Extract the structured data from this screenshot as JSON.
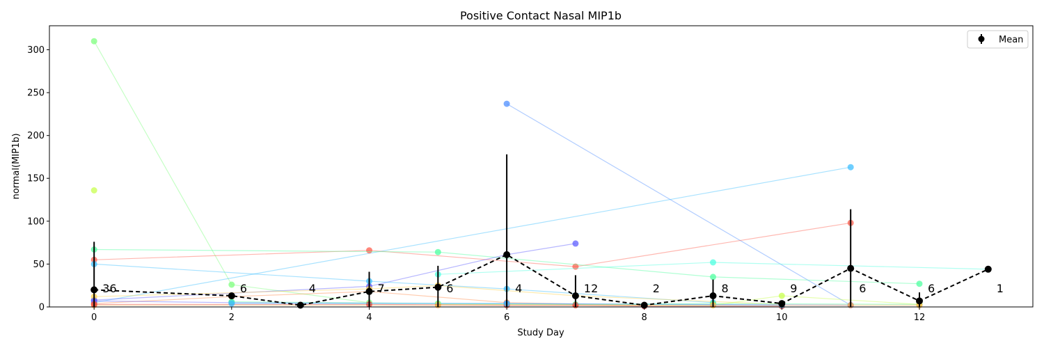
{
  "chart_data": {
    "type": "line",
    "title": "Positive Contact Nasal MIP1b",
    "xlabel": "Study Day",
    "ylabel": "normal(MIP1b)",
    "xlim": [
      -0.65,
      13.65
    ],
    "ylim": [
      0,
      328
    ],
    "xticks": [
      0,
      2,
      4,
      6,
      8,
      10,
      12
    ],
    "yticks": [
      0,
      50,
      100,
      150,
      200,
      250,
      300
    ],
    "grid": false,
    "legend": {
      "position": "top-right",
      "entries": [
        "Mean"
      ]
    },
    "mean_series": {
      "name": "Mean",
      "color": "#000000",
      "points": [
        {
          "x": 0,
          "y": 20,
          "err": 56,
          "n": "36"
        },
        {
          "x": 2,
          "y": 13,
          "err": 0,
          "n": "6"
        },
        {
          "x": 3,
          "y": 2,
          "err": 0,
          "n": "4"
        },
        {
          "x": 4,
          "y": 18,
          "err": 23,
          "n": "7"
        },
        {
          "x": 5,
          "y": 23,
          "err": 25,
          "n": "6"
        },
        {
          "x": 6,
          "y": 61,
          "err": 117,
          "n": "4"
        },
        {
          "x": 7,
          "y": 13,
          "err": 24,
          "n": "12"
        },
        {
          "x": 8,
          "y": 2,
          "err": 0,
          "n": "2"
        },
        {
          "x": 9,
          "y": 13,
          "err": 19,
          "n": "8"
        },
        {
          "x": 10,
          "y": 4,
          "err": 0,
          "n": "9"
        },
        {
          "x": 11,
          "y": 45,
          "err": 69,
          "n": "6"
        },
        {
          "x": 12,
          "y": 7,
          "err": 10,
          "n": "6"
        },
        {
          "x": 13,
          "y": 44,
          "err": 0,
          "n": "1"
        }
      ]
    },
    "subject_series": [
      {
        "color": "#7fff7f",
        "points": [
          [
            0,
            310
          ],
          [
            2,
            26
          ],
          [
            4,
            5
          ]
        ]
      },
      {
        "color": "#4f8fff",
        "points": [
          [
            6,
            237
          ],
          [
            11,
            2
          ]
        ]
      },
      {
        "color": "#3fbfff",
        "points": [
          [
            0,
            5
          ],
          [
            11,
            163
          ]
        ]
      },
      {
        "color": "#ff5f4f",
        "points": [
          [
            0,
            55
          ],
          [
            4,
            66
          ],
          [
            7,
            47
          ],
          [
            11,
            98
          ]
        ]
      },
      {
        "color": "#c8ff4f",
        "points": [
          [
            0,
            136
          ]
        ]
      },
      {
        "color": "#4fffa0",
        "points": [
          [
            0,
            67
          ],
          [
            5,
            64
          ],
          [
            9,
            35
          ],
          [
            12,
            27
          ]
        ]
      },
      {
        "color": "#4fffe0",
        "points": [
          [
            5,
            38
          ],
          [
            9,
            52
          ],
          [
            13,
            44
          ]
        ]
      },
      {
        "color": "#5f5fff",
        "points": [
          [
            0,
            8
          ],
          [
            4,
            24
          ],
          [
            6,
            61
          ],
          [
            7,
            74
          ]
        ]
      },
      {
        "color": "#3fbfff",
        "points": [
          [
            0,
            50
          ],
          [
            4,
            30
          ],
          [
            6,
            21
          ],
          [
            9,
            5
          ]
        ]
      },
      {
        "color": "#ffd24f",
        "points": [
          [
            0,
            12
          ],
          [
            4,
            21
          ],
          [
            5,
            25
          ],
          [
            7,
            13
          ],
          [
            10,
            3
          ]
        ]
      },
      {
        "color": "#ff8f4f",
        "points": [
          [
            0,
            4
          ],
          [
            2,
            12
          ],
          [
            4,
            18
          ],
          [
            6,
            5
          ],
          [
            8,
            2
          ]
        ]
      },
      {
        "color": "#5f5fff",
        "points": [
          [
            0,
            7
          ],
          [
            2,
            5
          ],
          [
            6,
            4
          ],
          [
            11,
            2
          ]
        ]
      },
      {
        "color": "#4fffa0",
        "points": [
          [
            2,
            6
          ],
          [
            5,
            4
          ],
          [
            7,
            3
          ],
          [
            9,
            4
          ],
          [
            12,
            3
          ]
        ]
      },
      {
        "color": "#c8ff4f",
        "points": [
          [
            5,
            3
          ],
          [
            9,
            2
          ],
          [
            10,
            13
          ],
          [
            12,
            3
          ]
        ]
      },
      {
        "color": "#ffb04f",
        "points": [
          [
            0,
            2
          ],
          [
            3,
            2
          ],
          [
            5,
            2
          ],
          [
            7,
            2
          ],
          [
            9,
            2
          ],
          [
            11,
            2
          ],
          [
            12,
            2
          ]
        ]
      },
      {
        "color": "#e8403f",
        "points": [
          [
            0,
            3
          ],
          [
            4,
            3
          ],
          [
            6,
            2
          ],
          [
            7,
            2
          ],
          [
            8,
            1
          ],
          [
            10,
            1
          ]
        ]
      },
      {
        "color": "#3fbfff",
        "points": [
          [
            2,
            4
          ],
          [
            6,
            4
          ],
          [
            10,
            2
          ]
        ]
      }
    ]
  }
}
